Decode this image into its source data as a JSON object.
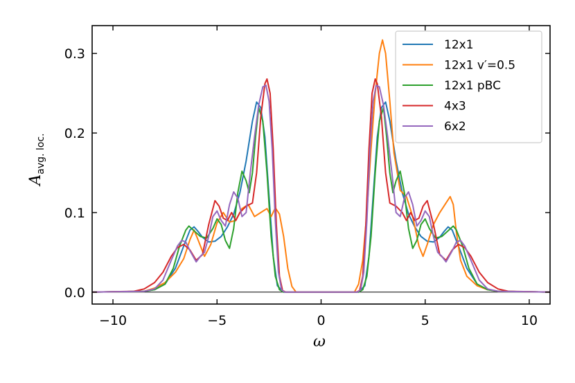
{
  "chart_data": {
    "type": "line",
    "xlabel": "ω",
    "ylabel_main": "A",
    "ylabel_sub": "avg. loc.",
    "xlim": [
      -11,
      11
    ],
    "ylim": [
      -0.015,
      0.335
    ],
    "xticks": [
      -10,
      -5,
      0,
      5,
      10
    ],
    "xtick_labels": [
      "−10",
      "−5",
      "0",
      "5",
      "10"
    ],
    "yticks": [
      0.0,
      0.1,
      0.2,
      0.3
    ],
    "ytick_labels": [
      "0.0",
      "0.1",
      "0.2",
      "0.3"
    ],
    "legend_position": "top-right",
    "grid": false,
    "zero_line": true,
    "series": [
      {
        "name": "12x1",
        "color": "#1f77b4",
        "points": [
          [
            -11,
            0
          ],
          [
            -8.5,
            0.001
          ],
          [
            -8,
            0.003
          ],
          [
            -7.5,
            0.01
          ],
          [
            -7.0,
            0.03
          ],
          [
            -6.6,
            0.058
          ],
          [
            -6.3,
            0.078
          ],
          [
            -6.1,
            0.082
          ],
          [
            -5.9,
            0.076
          ],
          [
            -5.7,
            0.069
          ],
          [
            -5.4,
            0.063
          ],
          [
            -5.1,
            0.064
          ],
          [
            -4.8,
            0.07
          ],
          [
            -4.5,
            0.082
          ],
          [
            -4.2,
            0.098
          ],
          [
            -3.9,
            0.125
          ],
          [
            -3.6,
            0.165
          ],
          [
            -3.3,
            0.215
          ],
          [
            -3.1,
            0.239
          ],
          [
            -2.9,
            0.232
          ],
          [
            -2.7,
            0.195
          ],
          [
            -2.5,
            0.12
          ],
          [
            -2.3,
            0.045
          ],
          [
            -2.1,
            0.008
          ],
          [
            -1.8,
            0
          ],
          [
            0,
            0
          ],
          [
            1.8,
            0
          ],
          [
            2.1,
            0.008
          ],
          [
            2.3,
            0.045
          ],
          [
            2.5,
            0.12
          ],
          [
            2.7,
            0.195
          ],
          [
            2.9,
            0.232
          ],
          [
            3.1,
            0.239
          ],
          [
            3.3,
            0.215
          ],
          [
            3.6,
            0.165
          ],
          [
            3.9,
            0.125
          ],
          [
            4.2,
            0.098
          ],
          [
            4.5,
            0.082
          ],
          [
            4.8,
            0.07
          ],
          [
            5.1,
            0.064
          ],
          [
            5.4,
            0.063
          ],
          [
            5.7,
            0.069
          ],
          [
            5.9,
            0.076
          ],
          [
            6.1,
            0.082
          ],
          [
            6.3,
            0.078
          ],
          [
            6.6,
            0.058
          ],
          [
            7.0,
            0.03
          ],
          [
            7.5,
            0.01
          ],
          [
            8,
            0.003
          ],
          [
            8.5,
            0.001
          ],
          [
            11,
            0
          ]
        ]
      },
      {
        "name": "12x1  v′=0.5",
        "color": "#ff7f0e",
        "points": [
          [
            -11,
            0
          ],
          [
            -8.5,
            0.001
          ],
          [
            -8,
            0.005
          ],
          [
            -7.5,
            0.012
          ],
          [
            -7.0,
            0.025
          ],
          [
            -6.6,
            0.042
          ],
          [
            -6.3,
            0.066
          ],
          [
            -6.1,
            0.078
          ],
          [
            -5.9,
            0.065
          ],
          [
            -5.6,
            0.045
          ],
          [
            -5.3,
            0.06
          ],
          [
            -5.0,
            0.087
          ],
          [
            -4.7,
            0.1
          ],
          [
            -4.4,
            0.088
          ],
          [
            -4.1,
            0.09
          ],
          [
            -3.8,
            0.105
          ],
          [
            -3.5,
            0.11
          ],
          [
            -3.2,
            0.095
          ],
          [
            -2.9,
            0.1
          ],
          [
            -2.6,
            0.105
          ],
          [
            -2.4,
            0.095
          ],
          [
            -2.2,
            0.106
          ],
          [
            -2.0,
            0.098
          ],
          [
            -1.8,
            0.07
          ],
          [
            -1.6,
            0.03
          ],
          [
            -1.4,
            0.007
          ],
          [
            -1.2,
            0
          ],
          [
            0,
            0
          ],
          [
            1.6,
            0
          ],
          [
            1.8,
            0.01
          ],
          [
            2.0,
            0.04
          ],
          [
            2.2,
            0.1
          ],
          [
            2.4,
            0.18
          ],
          [
            2.6,
            0.25
          ],
          [
            2.8,
            0.3
          ],
          [
            2.95,
            0.317
          ],
          [
            3.1,
            0.3
          ],
          [
            3.3,
            0.24
          ],
          [
            3.5,
            0.175
          ],
          [
            3.8,
            0.128
          ],
          [
            4.1,
            0.12
          ],
          [
            4.4,
            0.095
          ],
          [
            4.7,
            0.058
          ],
          [
            4.9,
            0.045
          ],
          [
            5.1,
            0.06
          ],
          [
            5.4,
            0.085
          ],
          [
            5.7,
            0.1
          ],
          [
            6.0,
            0.112
          ],
          [
            6.2,
            0.12
          ],
          [
            6.35,
            0.11
          ],
          [
            6.5,
            0.075
          ],
          [
            6.7,
            0.04
          ],
          [
            7.0,
            0.02
          ],
          [
            7.5,
            0.008
          ],
          [
            8,
            0.003
          ],
          [
            8.5,
            0.001
          ],
          [
            11,
            0
          ]
        ]
      },
      {
        "name": "12x1 pBC",
        "color": "#2ca02c",
        "points": [
          [
            -11,
            0
          ],
          [
            -8.5,
            0.001
          ],
          [
            -8,
            0.003
          ],
          [
            -7.5,
            0.01
          ],
          [
            -7.1,
            0.03
          ],
          [
            -6.8,
            0.058
          ],
          [
            -6.5,
            0.078
          ],
          [
            -6.35,
            0.083
          ],
          [
            -6.1,
            0.077
          ],
          [
            -5.8,
            0.07
          ],
          [
            -5.5,
            0.068
          ],
          [
            -5.2,
            0.08
          ],
          [
            -5.0,
            0.092
          ],
          [
            -4.8,
            0.085
          ],
          [
            -4.6,
            0.065
          ],
          [
            -4.4,
            0.055
          ],
          [
            -4.2,
            0.08
          ],
          [
            -4.0,
            0.125
          ],
          [
            -3.8,
            0.152
          ],
          [
            -3.6,
            0.14
          ],
          [
            -3.45,
            0.125
          ],
          [
            -3.3,
            0.15
          ],
          [
            -3.15,
            0.195
          ],
          [
            -3.0,
            0.232
          ],
          [
            -2.8,
            0.215
          ],
          [
            -2.6,
            0.15
          ],
          [
            -2.4,
            0.07
          ],
          [
            -2.2,
            0.02
          ],
          [
            -2.0,
            0.003
          ],
          [
            -1.8,
            0
          ],
          [
            0,
            0
          ],
          [
            1.8,
            0
          ],
          [
            2.0,
            0.003
          ],
          [
            2.2,
            0.02
          ],
          [
            2.4,
            0.07
          ],
          [
            2.6,
            0.15
          ],
          [
            2.8,
            0.215
          ],
          [
            3.0,
            0.232
          ],
          [
            3.15,
            0.195
          ],
          [
            3.3,
            0.15
          ],
          [
            3.45,
            0.125
          ],
          [
            3.6,
            0.14
          ],
          [
            3.8,
            0.152
          ],
          [
            4.0,
            0.125
          ],
          [
            4.2,
            0.08
          ],
          [
            4.4,
            0.055
          ],
          [
            4.6,
            0.065
          ],
          [
            4.8,
            0.085
          ],
          [
            5.0,
            0.092
          ],
          [
            5.2,
            0.08
          ],
          [
            5.5,
            0.068
          ],
          [
            5.8,
            0.07
          ],
          [
            6.1,
            0.077
          ],
          [
            6.35,
            0.083
          ],
          [
            6.5,
            0.078
          ],
          [
            6.8,
            0.058
          ],
          [
            7.1,
            0.03
          ],
          [
            7.5,
            0.01
          ],
          [
            8,
            0.003
          ],
          [
            8.5,
            0.001
          ],
          [
            11,
            0
          ]
        ]
      },
      {
        "name": "4x3",
        "color": "#d62728",
        "points": [
          [
            -11,
            0
          ],
          [
            -9,
            0.001
          ],
          [
            -8.5,
            0.004
          ],
          [
            -8,
            0.012
          ],
          [
            -7.6,
            0.025
          ],
          [
            -7.2,
            0.045
          ],
          [
            -6.9,
            0.056
          ],
          [
            -6.6,
            0.06
          ],
          [
            -6.3,
            0.053
          ],
          [
            -6.0,
            0.04
          ],
          [
            -5.7,
            0.047
          ],
          [
            -5.4,
            0.085
          ],
          [
            -5.1,
            0.115
          ],
          [
            -4.9,
            0.108
          ],
          [
            -4.7,
            0.093
          ],
          [
            -4.5,
            0.09
          ],
          [
            -4.3,
            0.1
          ],
          [
            -4.1,
            0.09
          ],
          [
            -3.9,
            0.1
          ],
          [
            -3.6,
            0.108
          ],
          [
            -3.3,
            0.112
          ],
          [
            -3.1,
            0.15
          ],
          [
            -2.9,
            0.22
          ],
          [
            -2.7,
            0.262
          ],
          [
            -2.6,
            0.268
          ],
          [
            -2.45,
            0.25
          ],
          [
            -2.3,
            0.18
          ],
          [
            -2.15,
            0.085
          ],
          [
            -2.0,
            0.02
          ],
          [
            -1.85,
            0.002
          ],
          [
            -1.7,
            0
          ],
          [
            0,
            0
          ],
          [
            1.7,
            0
          ],
          [
            1.85,
            0.002
          ],
          [
            2.0,
            0.02
          ],
          [
            2.15,
            0.085
          ],
          [
            2.3,
            0.18
          ],
          [
            2.45,
            0.25
          ],
          [
            2.6,
            0.268
          ],
          [
            2.7,
            0.262
          ],
          [
            2.9,
            0.22
          ],
          [
            3.1,
            0.15
          ],
          [
            3.3,
            0.112
          ],
          [
            3.6,
            0.108
          ],
          [
            3.9,
            0.1
          ],
          [
            4.1,
            0.09
          ],
          [
            4.3,
            0.1
          ],
          [
            4.5,
            0.09
          ],
          [
            4.7,
            0.093
          ],
          [
            4.9,
            0.108
          ],
          [
            5.1,
            0.115
          ],
          [
            5.4,
            0.085
          ],
          [
            5.7,
            0.047
          ],
          [
            6.0,
            0.04
          ],
          [
            6.3,
            0.053
          ],
          [
            6.6,
            0.06
          ],
          [
            6.9,
            0.056
          ],
          [
            7.2,
            0.045
          ],
          [
            7.6,
            0.025
          ],
          [
            8,
            0.012
          ],
          [
            8.5,
            0.004
          ],
          [
            9,
            0.001
          ],
          [
            11,
            0
          ]
        ]
      },
      {
        "name": "6x2",
        "color": "#9467bd",
        "points": [
          [
            -11,
            0
          ],
          [
            -8.5,
            0.001
          ],
          [
            -8,
            0.004
          ],
          [
            -7.6,
            0.015
          ],
          [
            -7.2,
            0.04
          ],
          [
            -6.9,
            0.058
          ],
          [
            -6.7,
            0.065
          ],
          [
            -6.5,
            0.063
          ],
          [
            -6.3,
            0.052
          ],
          [
            -6.0,
            0.038
          ],
          [
            -5.8,
            0.045
          ],
          [
            -5.6,
            0.05
          ],
          [
            -5.4,
            0.07
          ],
          [
            -5.2,
            0.095
          ],
          [
            -5.0,
            0.102
          ],
          [
            -4.8,
            0.09
          ],
          [
            -4.6,
            0.083
          ],
          [
            -4.4,
            0.11
          ],
          [
            -4.2,
            0.126
          ],
          [
            -4.0,
            0.118
          ],
          [
            -3.8,
            0.095
          ],
          [
            -3.6,
            0.1
          ],
          [
            -3.4,
            0.15
          ],
          [
            -3.2,
            0.195
          ],
          [
            -3.0,
            0.235
          ],
          [
            -2.8,
            0.258
          ],
          [
            -2.65,
            0.26
          ],
          [
            -2.5,
            0.24
          ],
          [
            -2.35,
            0.18
          ],
          [
            -2.2,
            0.09
          ],
          [
            -2.05,
            0.025
          ],
          [
            -1.9,
            0.003
          ],
          [
            -1.75,
            0
          ],
          [
            0,
            0
          ],
          [
            1.75,
            0
          ],
          [
            1.9,
            0.003
          ],
          [
            2.05,
            0.025
          ],
          [
            2.2,
            0.09
          ],
          [
            2.35,
            0.18
          ],
          [
            2.5,
            0.24
          ],
          [
            2.65,
            0.26
          ],
          [
            2.8,
            0.258
          ],
          [
            3.0,
            0.235
          ],
          [
            3.2,
            0.195
          ],
          [
            3.4,
            0.15
          ],
          [
            3.6,
            0.1
          ],
          [
            3.8,
            0.095
          ],
          [
            4.0,
            0.118
          ],
          [
            4.2,
            0.126
          ],
          [
            4.4,
            0.11
          ],
          [
            4.6,
            0.083
          ],
          [
            4.8,
            0.09
          ],
          [
            5.0,
            0.102
          ],
          [
            5.2,
            0.095
          ],
          [
            5.4,
            0.07
          ],
          [
            5.6,
            0.05
          ],
          [
            5.8,
            0.045
          ],
          [
            6.0,
            0.038
          ],
          [
            6.3,
            0.052
          ],
          [
            6.5,
            0.063
          ],
          [
            6.7,
            0.065
          ],
          [
            6.9,
            0.058
          ],
          [
            7.2,
            0.04
          ],
          [
            7.6,
            0.015
          ],
          [
            8,
            0.004
          ],
          [
            8.5,
            0.001
          ],
          [
            11,
            0
          ]
        ]
      }
    ]
  }
}
